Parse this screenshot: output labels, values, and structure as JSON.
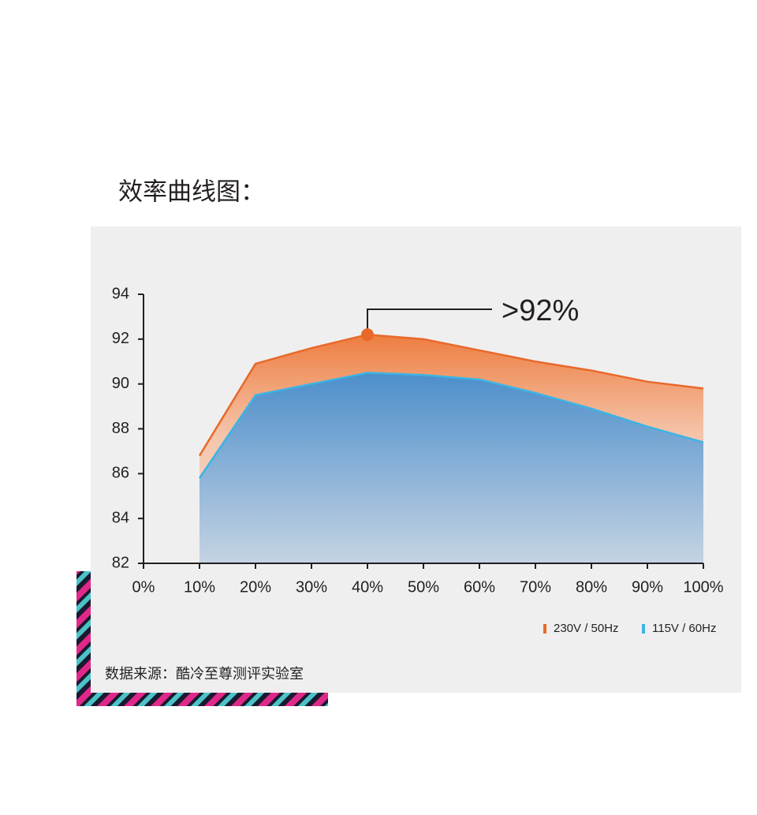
{
  "chart_data": {
    "type": "area",
    "title": "效率曲线图：",
    "x": [
      10,
      20,
      30,
      40,
      50,
      60,
      70,
      80,
      90,
      100
    ],
    "xlim": [
      0,
      100
    ],
    "xticks": [
      {
        "value": 0,
        "label": "0%"
      },
      {
        "value": 10,
        "label": "10%"
      },
      {
        "value": 20,
        "label": "20%"
      },
      {
        "value": 30,
        "label": "30%"
      },
      {
        "value": 40,
        "label": "40%"
      },
      {
        "value": 50,
        "label": "50%"
      },
      {
        "value": 60,
        "label": "60%"
      },
      {
        "value": 70,
        "label": "70%"
      },
      {
        "value": 80,
        "label": "80%"
      },
      {
        "value": 90,
        "label": "90%"
      },
      {
        "value": 100,
        "label": "100%"
      }
    ],
    "ylim": [
      82,
      94
    ],
    "yticks": [
      82,
      84,
      86,
      88,
      90,
      92,
      94
    ],
    "series": [
      {
        "name": "230V / 50Hz",
        "color": "#e8692a",
        "values": [
          86.8,
          90.9,
          91.6,
          92.2,
          92.0,
          91.5,
          91.0,
          90.6,
          90.1,
          89.8
        ]
      },
      {
        "name": "115V / 60Hz",
        "color": "#3cb4e5",
        "values": [
          85.8,
          89.5,
          90.0,
          90.5,
          90.4,
          90.2,
          89.6,
          88.9,
          88.1,
          87.4
        ]
      }
    ],
    "annotation": ">92%",
    "source": "数据来源：酷冷至尊测评实验室"
  }
}
